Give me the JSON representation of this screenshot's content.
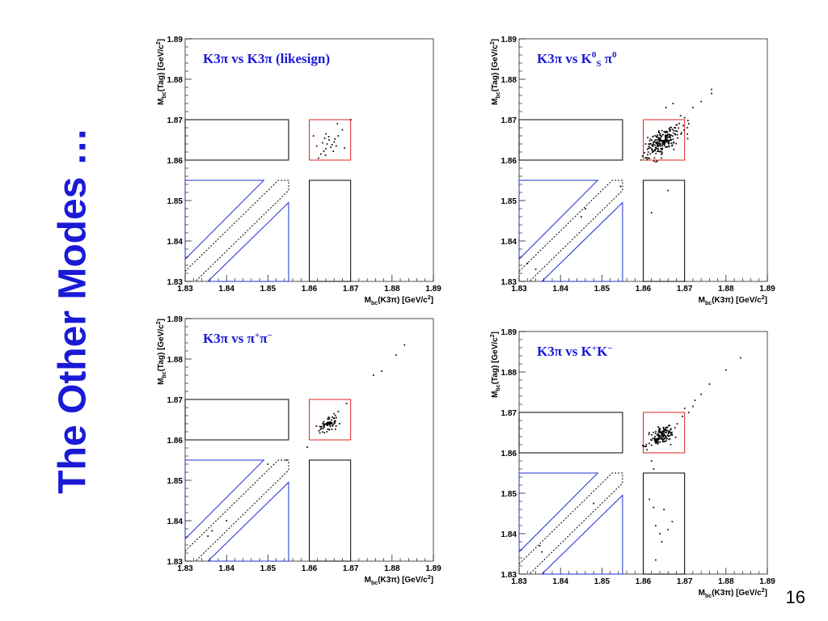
{
  "slide": {
    "title": "The Other Modes …",
    "page_number": "16"
  },
  "chart_data": [
    {
      "type": "scatter",
      "title": "K3π vs K3π (likesign)",
      "xlabel": "Mbc(K3π) [GeV/c2]",
      "ylabel": "Mbc(Tag) [GeV/c2]",
      "xlim": [
        1.83,
        1.89
      ],
      "ylim": [
        1.83,
        1.89
      ],
      "xticks": [
        "1.83",
        "1.84",
        "1.85",
        "1.86",
        "1.87",
        "1.88",
        "1.89"
      ],
      "yticks": [
        "1.83",
        "1.84",
        "1.85",
        "1.86",
        "1.87",
        "1.88",
        "1.89"
      ],
      "signal_box": {
        "x": [
          1.86,
          1.87
        ],
        "y": [
          1.86,
          1.87
        ]
      },
      "points": [
        [
          1.8622,
          1.8605
        ],
        [
          1.864,
          1.8628
        ],
        [
          1.8655,
          1.8638
        ],
        [
          1.8635,
          1.8622
        ],
        [
          1.8648,
          1.865
        ],
        [
          1.866,
          1.8645
        ],
        [
          1.8628,
          1.8615
        ],
        [
          1.867,
          1.866
        ],
        [
          1.8652,
          1.8632
        ],
        [
          1.8643,
          1.864
        ],
        [
          1.8637,
          1.8654
        ],
        [
          1.8665,
          1.8635
        ],
        [
          1.868,
          1.8675
        ],
        [
          1.8632,
          1.8643
        ],
        [
          1.8658,
          1.8622
        ],
        [
          1.8668,
          1.869
        ],
        [
          1.861,
          1.866
        ],
        [
          1.8685,
          1.863
        ],
        [
          1.8647,
          1.8658
        ],
        [
          1.8639,
          1.8612
        ],
        [
          1.8618,
          1.8635
        ],
        [
          1.8662,
          1.8652
        ],
        [
          1.87,
          1.87
        ],
        [
          1.864,
          1.8665
        ]
      ]
    },
    {
      "type": "scatter",
      "title": "K3π vs K0S π0",
      "xlabel": "Mbc(K3π) [GeV/c2]",
      "ylabel": "Mbc(Tag) [GeV/c2]",
      "xlim": [
        1.83,
        1.89
      ],
      "ylim": [
        1.83,
        1.89
      ],
      "xticks": [
        "1.83",
        "1.84",
        "1.85",
        "1.86",
        "1.87",
        "1.88",
        "1.89"
      ],
      "yticks": [
        "1.83",
        "1.84",
        "1.85",
        "1.86",
        "1.87",
        "1.88",
        "1.89"
      ],
      "signal_box": {
        "x": [
          1.86,
          1.87
        ],
        "y": [
          1.86,
          1.87
        ]
      },
      "cluster": {
        "center": [
          1.8645,
          1.8645
        ],
        "spread": [
          0.002,
          0.0018
        ],
        "count": 230,
        "seed": 7
      },
      "points": [
        [
          1.8765,
          1.8775
        ],
        [
          1.8765,
          1.8765
        ],
        [
          1.874,
          1.8745
        ],
        [
          1.872,
          1.873
        ],
        [
          1.87,
          1.8705
        ],
        [
          1.869,
          1.871
        ],
        [
          1.871,
          1.869
        ],
        [
          1.866,
          1.8525
        ],
        [
          1.862,
          1.847
        ],
        [
          1.846,
          1.848
        ],
        [
          1.845,
          1.846
        ],
        [
          1.832,
          1.8345
        ],
        [
          1.834,
          1.833
        ],
        [
          1.8545,
          1.8535
        ],
        [
          1.8672,
          1.874
        ],
        [
          1.8655,
          1.873
        ],
        [
          1.8708,
          1.8698
        ],
        [
          1.8598,
          1.861
        ]
      ]
    },
    {
      "type": "scatter",
      "title": "K3π vs π+π−",
      "xlabel": "Mbc(K3π) [GeV/c2]",
      "ylabel": "Mbc(Tag) [GeV/c2]",
      "xlim": [
        1.83,
        1.89
      ],
      "ylim": [
        1.83,
        1.89
      ],
      "xticks": [
        "1.83",
        "1.84",
        "1.85",
        "1.86",
        "1.87",
        "1.88",
        "1.89"
      ],
      "yticks": [
        "1.83",
        "1.84",
        "1.85",
        "1.86",
        "1.87",
        "1.88",
        "1.89"
      ],
      "signal_box": {
        "x": [
          1.86,
          1.87
        ],
        "y": [
          1.86,
          1.87
        ]
      },
      "cluster": {
        "center": [
          1.8645,
          1.8638
        ],
        "spread": [
          0.0012,
          0.001
        ],
        "count": 70,
        "seed": 13
      },
      "points": [
        [
          1.883,
          1.8835
        ],
        [
          1.881,
          1.881
        ],
        [
          1.8775,
          1.877
        ],
        [
          1.8755,
          1.876
        ],
        [
          1.869,
          1.869
        ],
        [
          1.867,
          1.867
        ],
        [
          1.8595,
          1.8582
        ],
        [
          1.84,
          1.84
        ],
        [
          1.8355,
          1.8362
        ],
        [
          1.8365,
          1.8375
        ],
        [
          1.85,
          1.854
        ],
        [
          1.8545,
          1.855
        ],
        [
          1.866,
          1.8665
        ]
      ]
    },
    {
      "type": "scatter",
      "title": "K3π vs K+K−",
      "xlabel": "Mbc(K3π) [GeV/c2]",
      "ylabel": "Mbc(Tag) [GeV/c2]",
      "xlim": [
        1.83,
        1.89
      ],
      "ylim": [
        1.83,
        1.89
      ],
      "xticks": [
        "1.83",
        "1.84",
        "1.85",
        "1.86",
        "1.87",
        "1.88",
        "1.89"
      ],
      "yticks": [
        "1.83",
        "1.84",
        "1.85",
        "1.86",
        "1.87",
        "1.88",
        "1.89"
      ],
      "signal_box": {
        "x": [
          1.86,
          1.87
        ],
        "y": [
          1.86,
          1.87
        ]
      },
      "cluster": {
        "center": [
          1.8645,
          1.8642
        ],
        "spread": [
          0.0015,
          0.0012
        ],
        "count": 160,
        "seed": 21
      },
      "points": [
        [
          1.8835,
          1.8835
        ],
        [
          1.88,
          1.8805
        ],
        [
          1.876,
          1.877
        ],
        [
          1.874,
          1.8745
        ],
        [
          1.8725,
          1.873
        ],
        [
          1.872,
          1.8715
        ],
        [
          1.87,
          1.871
        ],
        [
          1.8695,
          1.869
        ],
        [
          1.871,
          1.87
        ],
        [
          1.8615,
          1.8485
        ],
        [
          1.8625,
          1.8465
        ],
        [
          1.863,
          1.842
        ],
        [
          1.864,
          1.84
        ],
        [
          1.8645,
          1.838
        ],
        [
          1.866,
          1.841
        ],
        [
          1.867,
          1.843
        ],
        [
          1.865,
          1.846
        ],
        [
          1.863,
          1.8335
        ],
        [
          1.8355,
          1.8355
        ],
        [
          1.835,
          1.837
        ],
        [
          1.848,
          1.8475
        ],
        [
          1.862,
          1.858
        ],
        [
          1.8625,
          1.856
        ]
      ]
    }
  ]
}
